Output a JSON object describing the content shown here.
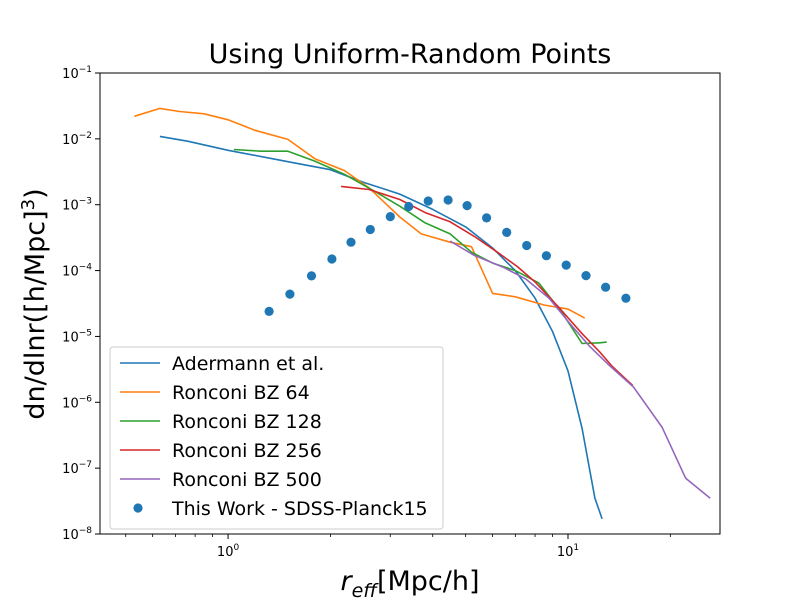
{
  "chart_data": {
    "type": "line",
    "title": "Using Uniform-Random Points",
    "xlabel": {
      "main": "r",
      "sub": "eff",
      "rest": "[Mpc/h]"
    },
    "ylabel": {
      "text": "dn/dlnr([h/Mpc]",
      "sup": "3",
      "end": ")"
    },
    "xscale": "log",
    "yscale": "log",
    "xlim": [
      0.42,
      28
    ],
    "ylim": [
      1e-08,
      0.1
    ],
    "xticks": [
      {
        "value": 1,
        "base": "10",
        "exp": "0"
      },
      {
        "value": 10,
        "base": "10",
        "exp": "1"
      }
    ],
    "yticks": [
      {
        "value": 1e-08,
        "base": "10",
        "exp": "−8"
      },
      {
        "value": 1e-07,
        "base": "10",
        "exp": "−7"
      },
      {
        "value": 1e-06,
        "base": "10",
        "exp": "−6"
      },
      {
        "value": 1e-05,
        "base": "10",
        "exp": "−5"
      },
      {
        "value": 0.0001,
        "base": "10",
        "exp": "−4"
      },
      {
        "value": 0.001,
        "base": "10",
        "exp": "−3"
      },
      {
        "value": 0.01,
        "base": "10",
        "exp": "−2"
      },
      {
        "value": 0.1,
        "base": "10",
        "exp": "−1"
      }
    ],
    "grid": false,
    "legend_position": "lower-left",
    "series": [
      {
        "name": "Adermann et al.",
        "kind": "line",
        "color": "#1f77b4",
        "points": [
          [
            0.63,
            0.0109
          ],
          [
            0.76,
            0.0092
          ],
          [
            1.0,
            0.0067
          ],
          [
            1.5,
            0.0045
          ],
          [
            2.0,
            0.0034
          ],
          [
            2.5,
            0.0022
          ],
          [
            3.2,
            0.00145
          ],
          [
            4.0,
            0.00085
          ],
          [
            5.0,
            0.00046
          ],
          [
            6.0,
            0.00022
          ],
          [
            7.0,
            0.0001
          ],
          [
            8.0,
            3.8e-05
          ],
          [
            9.0,
            1.2e-05
          ],
          [
            10.0,
            3e-06
          ],
          [
            11.0,
            4e-07
          ],
          [
            12.0,
            3.5e-08
          ],
          [
            12.6,
            1.7e-08
          ]
        ]
      },
      {
        "name": "Ronconi BZ 64",
        "kind": "line",
        "color": "#ff7f0e",
        "points": [
          [
            0.53,
            0.022
          ],
          [
            0.63,
            0.029
          ],
          [
            0.72,
            0.026
          ],
          [
            0.85,
            0.024
          ],
          [
            1.0,
            0.0195
          ],
          [
            1.2,
            0.0135
          ],
          [
            1.5,
            0.0098
          ],
          [
            1.8,
            0.005
          ],
          [
            2.2,
            0.0033
          ],
          [
            2.6,
            0.0018
          ],
          [
            3.2,
            0.00065
          ],
          [
            3.7,
            0.00036
          ],
          [
            4.5,
            0.00027
          ],
          [
            5.2,
            0.00023
          ],
          [
            6.0,
            4.5e-05
          ],
          [
            7.0,
            4e-05
          ],
          [
            8.5,
            3e-05
          ],
          [
            10.0,
            2.6e-05
          ],
          [
            11.2,
            1.9e-05
          ]
        ]
      },
      {
        "name": "Ronconi BZ 128",
        "kind": "line",
        "color": "#2ca02c",
        "points": [
          [
            1.04,
            0.0069
          ],
          [
            1.25,
            0.0065
          ],
          [
            1.5,
            0.0065
          ],
          [
            1.8,
            0.0046
          ],
          [
            2.2,
            0.0029
          ],
          [
            2.7,
            0.0016
          ],
          [
            3.2,
            0.00095
          ],
          [
            3.8,
            0.00053
          ],
          [
            4.5,
            0.00036
          ],
          [
            5.2,
            0.00019
          ],
          [
            6.0,
            0.00013
          ],
          [
            7.0,
            0.0001
          ],
          [
            8.2,
            6.5e-05
          ],
          [
            9.6,
            2.3e-05
          ],
          [
            11.0,
            7.8e-06
          ],
          [
            12.4,
            8e-06
          ],
          [
            13.0,
            8.2e-06
          ]
        ]
      },
      {
        "name": "Ronconi BZ 256",
        "kind": "line",
        "color": "#d62728",
        "points": [
          [
            2.15,
            0.0019
          ],
          [
            2.6,
            0.0017
          ],
          [
            3.2,
            0.0012
          ],
          [
            3.8,
            0.00076
          ],
          [
            4.5,
            0.00055
          ],
          [
            5.3,
            0.00033
          ],
          [
            6.2,
            0.00019
          ],
          [
            7.1,
            0.000115
          ],
          [
            8.0,
            6.7e-05
          ],
          [
            9.5,
            2.6e-05
          ],
          [
            11.0,
            1.1e-05
          ],
          [
            12.4,
            5.8e-06
          ],
          [
            13.5,
            3.5e-06
          ],
          [
            15.5,
            1.8e-06
          ]
        ]
      },
      {
        "name": "Ronconi BZ 500",
        "kind": "line",
        "color": "#9467bd",
        "points": [
          [
            4.5,
            0.00028
          ],
          [
            5.3,
            0.00017
          ],
          [
            6.5,
            0.00011
          ],
          [
            7.5,
            7.5e-05
          ],
          [
            8.8,
            3.8e-05
          ],
          [
            10.2,
            1.5e-05
          ],
          [
            11.6,
            7e-06
          ],
          [
            13.1,
            3.8e-06
          ],
          [
            15.6,
            1.7e-06
          ],
          [
            18.9,
            4.2e-07
          ],
          [
            22.2,
            7e-08
          ],
          [
            26.2,
            3.5e-08
          ]
        ]
      },
      {
        "name": "This Work - SDSS-Planck15",
        "kind": "scatter",
        "color": "#1f77b4",
        "points": [
          [
            1.32,
            2.4e-05
          ],
          [
            1.52,
            4.4e-05
          ],
          [
            1.76,
            8.3e-05
          ],
          [
            2.02,
            0.00015
          ],
          [
            2.3,
            0.00027
          ],
          [
            2.62,
            0.00042
          ],
          [
            3.0,
            0.00066
          ],
          [
            3.4,
            0.00094
          ],
          [
            3.88,
            0.00114
          ],
          [
            4.44,
            0.00118
          ],
          [
            5.05,
            0.00097
          ],
          [
            5.76,
            0.00063
          ],
          [
            6.6,
            0.00038
          ],
          [
            7.56,
            0.00024
          ],
          [
            8.64,
            0.000168
          ],
          [
            9.88,
            0.000121
          ],
          [
            11.3,
            8.4e-05
          ],
          [
            12.9,
            5.6e-05
          ],
          [
            14.8,
            3.8e-05
          ]
        ]
      }
    ]
  }
}
